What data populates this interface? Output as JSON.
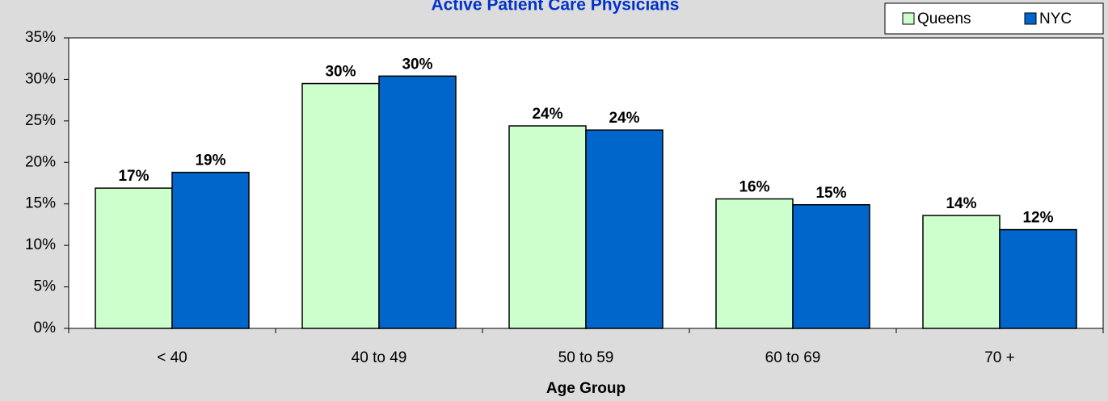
{
  "chart_data": {
    "type": "bar",
    "title": "Active Patient Care Physicians",
    "x_label": "Age Group",
    "categories": [
      "< 40",
      "40 to 49",
      "50 to 59",
      "60 to 69",
      "70 +"
    ],
    "series": [
      {
        "name": "Queens",
        "color": "#ccffcc",
        "values": [
          16.9,
          29.5,
          24.4,
          15.6,
          13.6
        ],
        "value_labels": [
          "17%",
          "30%",
          "24%",
          "16%",
          "14%"
        ]
      },
      {
        "name": "NYC",
        "color": "#0066cc",
        "values": [
          18.8,
          30.4,
          23.9,
          14.9,
          11.9
        ],
        "value_labels": [
          "19%",
          "30%",
          "24%",
          "15%",
          "12%"
        ]
      }
    ],
    "ylim": [
      0,
      35
    ],
    "yticks": [
      {
        "value": 0,
        "label": "0%"
      },
      {
        "value": 5,
        "label": "5%"
      },
      {
        "value": 10,
        "label": "10%"
      },
      {
        "value": 15,
        "label": "15%"
      },
      {
        "value": 20,
        "label": "20%"
      },
      {
        "value": 25,
        "label": "25%"
      },
      {
        "value": 30,
        "label": "30%"
      },
      {
        "value": 35,
        "label": "35%"
      }
    ],
    "legend": "top-right"
  }
}
